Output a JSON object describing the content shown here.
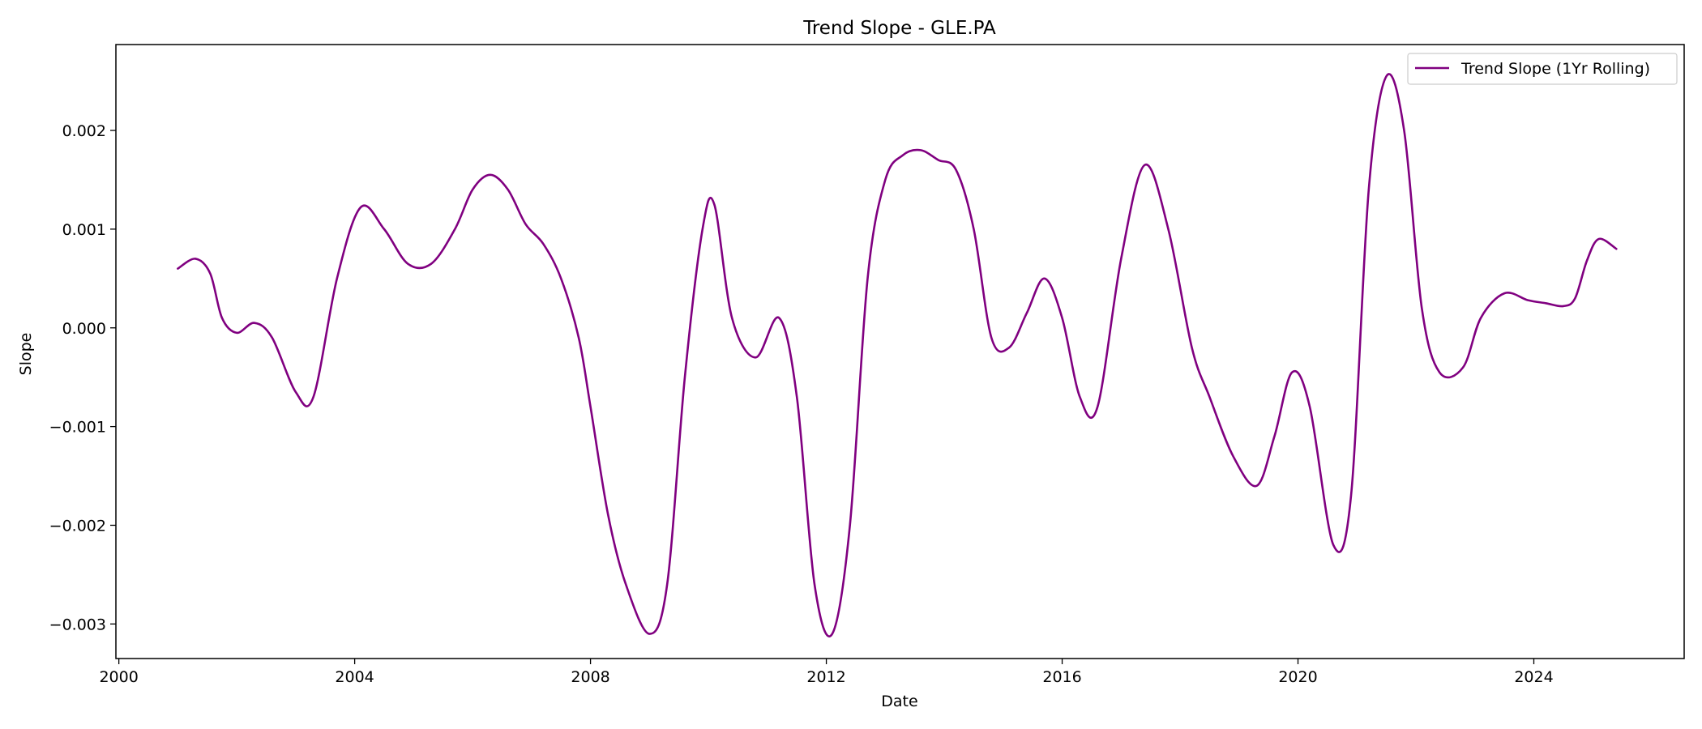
{
  "chart_data": {
    "type": "line",
    "title": "Trend Slope - GLE.PA",
    "xlabel": "Date",
    "ylabel": "Slope",
    "xlim": [
      1999.95,
      2026.55
    ],
    "ylim": [
      -0.00335,
      0.00287
    ],
    "x_ticks": [
      2000,
      2004,
      2008,
      2012,
      2016,
      2020,
      2024
    ],
    "x_tick_labels": [
      "2000",
      "2004",
      "2008",
      "2012",
      "2016",
      "2020",
      "2024"
    ],
    "y_ticks": [
      0.002,
      0.001,
      0.0,
      -0.001,
      -0.002,
      -0.003
    ],
    "y_tick_labels": [
      "0.002",
      "0.001",
      "0.000",
      "−0.001",
      "−0.002",
      "−0.003"
    ],
    "grid": false,
    "legend_position": "top-right",
    "series": [
      {
        "name": "Trend Slope (1Yr Rolling)",
        "color": "#800080",
        "x": [
          2001.0,
          2001.3,
          2001.55,
          2001.75,
          2002.0,
          2002.3,
          2002.6,
          2003.0,
          2003.3,
          2003.7,
          2004.1,
          2004.5,
          2004.9,
          2005.3,
          2005.7,
          2006.0,
          2006.3,
          2006.6,
          2006.9,
          2007.2,
          2007.5,
          2007.8,
          2008.0,
          2008.3,
          2008.6,
          2009.0,
          2009.3,
          2009.6,
          2009.9,
          2010.1,
          2010.4,
          2010.8,
          2011.2,
          2011.5,
          2011.8,
          2012.1,
          2012.4,
          2012.7,
          2013.0,
          2013.3,
          2013.6,
          2013.9,
          2014.2,
          2014.5,
          2014.8,
          2015.1,
          2015.4,
          2015.7,
          2016.0,
          2016.3,
          2016.6,
          2017.0,
          2017.4,
          2017.8,
          2018.2,
          2018.5,
          2018.9,
          2019.3,
          2019.6,
          2019.9,
          2020.2,
          2020.6,
          2020.9,
          2021.2,
          2021.5,
          2021.8,
          2022.1,
          2022.4,
          2022.8,
          2023.1,
          2023.5,
          2023.9,
          2024.2,
          2024.5,
          2024.7,
          2024.9,
          2025.1,
          2025.4
        ],
        "values": [
          0.0006,
          0.0007,
          0.00055,
          0.0001,
          -5e-05,
          5e-05,
          -0.0001,
          -0.00065,
          -0.0007,
          0.0005,
          0.00122,
          0.001,
          0.00065,
          0.00065,
          0.001,
          0.0014,
          0.00155,
          0.0014,
          0.00105,
          0.00085,
          0.0005,
          -0.0001,
          -0.0008,
          -0.0019,
          -0.0026,
          -0.0031,
          -0.0026,
          -0.0005,
          0.001,
          0.00125,
          0.0001,
          -0.0003,
          0.0001,
          -0.0007,
          -0.0026,
          -0.0031,
          -0.002,
          0.0005,
          0.0015,
          0.00175,
          0.0018,
          0.0017,
          0.0016,
          0.001,
          -0.0001,
          -0.0002,
          0.00015,
          0.0005,
          0.0001,
          -0.0007,
          -0.0008,
          0.0007,
          0.00165,
          0.001,
          -0.0002,
          -0.0007,
          -0.0013,
          -0.0016,
          -0.0011,
          -0.00045,
          -0.0008,
          -0.0022,
          -0.0017,
          0.0014,
          0.00255,
          0.002,
          0.0002,
          -0.00045,
          -0.0004,
          0.0001,
          0.00035,
          0.00028,
          0.00025,
          0.00022,
          0.0003,
          0.00068,
          0.0009,
          0.0008
        ]
      }
    ]
  }
}
